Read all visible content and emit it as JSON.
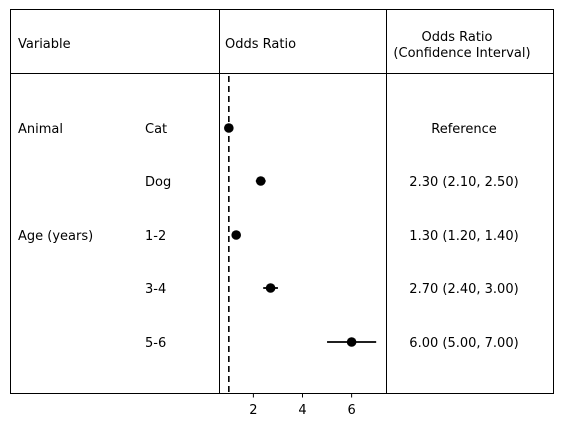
{
  "chart_data": {
    "type": "scatter",
    "headers": {
      "variable": "Variable",
      "odds_ratio": "Odds Ratio",
      "ci_line1": "Odds Ratio",
      "ci_line2": "(Confidence Interval)"
    },
    "rows": [
      {
        "group": "Animal",
        "level": "Cat",
        "or": 1.0,
        "lower": null,
        "upper": null,
        "text": "Reference"
      },
      {
        "group": "",
        "level": "Dog",
        "or": 2.3,
        "lower": 2.1,
        "upper": 2.5,
        "text": "2.30 (2.10, 2.50)"
      },
      {
        "group": "Age (years)",
        "level": "1-2",
        "or": 1.3,
        "lower": 1.2,
        "upper": 1.4,
        "text": "1.30 (1.20, 1.40)"
      },
      {
        "group": "",
        "level": "3-4",
        "or": 2.7,
        "lower": 2.4,
        "upper": 3.0,
        "text": "2.70 (2.40, 3.00)"
      },
      {
        "group": "",
        "level": "5-6",
        "or": 6.0,
        "lower": 5.0,
        "upper": 7.0,
        "text": "6.00 (5.00, 7.00)"
      }
    ],
    "reference_line": 1,
    "xlim": [
      0.6,
      7.4
    ],
    "xticks": [
      2,
      4,
      6
    ],
    "xlabel": "",
    "grid": false
  }
}
